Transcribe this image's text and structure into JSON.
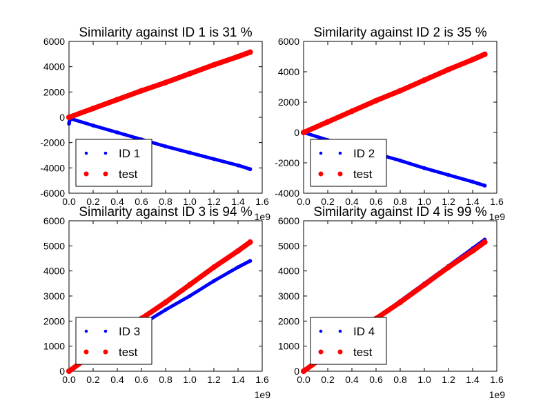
{
  "chart_data": [
    {
      "type": "scatter",
      "title": "Similarity against ID 1 is 31 %",
      "xlabel": "",
      "ylabel": "",
      "xlim": [
        0.0,
        1.6
      ],
      "ylim": [
        -6000,
        6000
      ],
      "x_ticks": [
        "0.0",
        "0.2",
        "0.4",
        "0.6",
        "0.8",
        "1.0",
        "1.2",
        "1.4",
        "1.6"
      ],
      "y_ticks": [
        "-6000",
        "-4000",
        "-2000",
        "0",
        "2000",
        "4000",
        "6000"
      ],
      "x_offset_label": "1e9",
      "grid": false,
      "legend_position": "lower-left",
      "series": [
        {
          "name": "ID 1",
          "color": "#0000ff",
          "marker_size": "small",
          "x": [
            0.0,
            0.01,
            0.2,
            0.4,
            0.6,
            0.8,
            1.0,
            1.2,
            1.4,
            1.5
          ],
          "y": [
            -500,
            -100,
            -650,
            -1200,
            -1750,
            -2300,
            -2800,
            -3300,
            -3800,
            -4100
          ]
        },
        {
          "name": "test",
          "color": "#ff0000",
          "marker_size": "large",
          "x": [
            0.0,
            0.2,
            0.4,
            0.6,
            0.8,
            1.0,
            1.2,
            1.4,
            1.5
          ],
          "y": [
            0,
            700,
            1400,
            2100,
            2750,
            3450,
            4150,
            4800,
            5150
          ]
        }
      ]
    },
    {
      "type": "scatter",
      "title": "Similarity against ID 2 is 35 %",
      "xlabel": "",
      "ylabel": "",
      "xlim": [
        0.0,
        1.6
      ],
      "ylim": [
        -4000,
        6000
      ],
      "x_ticks": [
        "0.0",
        "0.2",
        "0.4",
        "0.6",
        "0.8",
        "1.0",
        "1.2",
        "1.4",
        "1.6"
      ],
      "y_ticks": [
        "-4000",
        "-2000",
        "0",
        "2000",
        "4000",
        "6000"
      ],
      "x_offset_label": "1e9",
      "grid": false,
      "legend_position": "lower-left",
      "series": [
        {
          "name": "ID 2",
          "color": "#0000ff",
          "marker_size": "small",
          "x": [
            0.0,
            0.2,
            0.4,
            0.6,
            0.8,
            1.0,
            1.2,
            1.4,
            1.5
          ],
          "y": [
            0,
            -500,
            -950,
            -1400,
            -1850,
            -2350,
            -2800,
            -3250,
            -3500
          ]
        },
        {
          "name": "test",
          "color": "#ff0000",
          "marker_size": "large",
          "x": [
            0.0,
            0.2,
            0.4,
            0.6,
            0.8,
            1.0,
            1.2,
            1.4,
            1.5
          ],
          "y": [
            0,
            700,
            1400,
            2100,
            2750,
            3450,
            4150,
            4800,
            5150
          ]
        }
      ]
    },
    {
      "type": "scatter",
      "title": "Similarity against ID 3 is 94 %",
      "xlabel": "",
      "ylabel": "",
      "xlim": [
        0.0,
        1.6
      ],
      "ylim": [
        0,
        6000
      ],
      "x_ticks": [
        "0.0",
        "0.2",
        "0.4",
        "0.6",
        "0.8",
        "1.0",
        "1.2",
        "1.4",
        "1.6"
      ],
      "y_ticks": [
        "0",
        "1000",
        "2000",
        "3000",
        "4000",
        "5000",
        "6000"
      ],
      "x_offset_label": "1e9",
      "grid": false,
      "legend_position": "lower-left",
      "series": [
        {
          "name": "ID 3",
          "color": "#0000ff",
          "marker_size": "small",
          "x": [
            0.0,
            0.2,
            0.4,
            0.6,
            0.8,
            1.0,
            1.2,
            1.4,
            1.5
          ],
          "y": [
            0,
            650,
            1250,
            1850,
            2450,
            3000,
            3600,
            4150,
            4400
          ]
        },
        {
          "name": "test",
          "color": "#ff0000",
          "marker_size": "large",
          "x": [
            0.0,
            0.2,
            0.4,
            0.6,
            0.8,
            1.0,
            1.2,
            1.4,
            1.5
          ],
          "y": [
            0,
            700,
            1400,
            2100,
            2750,
            3450,
            4150,
            4800,
            5150
          ]
        }
      ]
    },
    {
      "type": "scatter",
      "title": "Similarity against ID 4 is 99 %",
      "xlabel": "",
      "ylabel": "",
      "xlim": [
        0.0,
        1.6
      ],
      "ylim": [
        0,
        6000
      ],
      "x_ticks": [
        "0.0",
        "0.2",
        "0.4",
        "0.6",
        "0.8",
        "1.0",
        "1.2",
        "1.4",
        "1.6"
      ],
      "y_ticks": [
        "0",
        "1000",
        "2000",
        "3000",
        "4000",
        "5000",
        "6000"
      ],
      "x_offset_label": "1e9",
      "grid": false,
      "legend_position": "lower-left",
      "series": [
        {
          "name": "ID 4",
          "color": "#0000ff",
          "marker_size": "small",
          "x": [
            0.0,
            0.2,
            0.4,
            0.6,
            0.8,
            1.0,
            1.2,
            1.4,
            1.5
          ],
          "y": [
            0,
            700,
            1400,
            2100,
            2800,
            3500,
            4200,
            4900,
            5250
          ]
        },
        {
          "name": "test",
          "color": "#ff0000",
          "marker_size": "large",
          "x": [
            0.0,
            0.2,
            0.4,
            0.6,
            0.8,
            1.0,
            1.2,
            1.4,
            1.5
          ],
          "y": [
            0,
            700,
            1400,
            2100,
            2750,
            3450,
            4150,
            4800,
            5150
          ]
        }
      ]
    }
  ]
}
